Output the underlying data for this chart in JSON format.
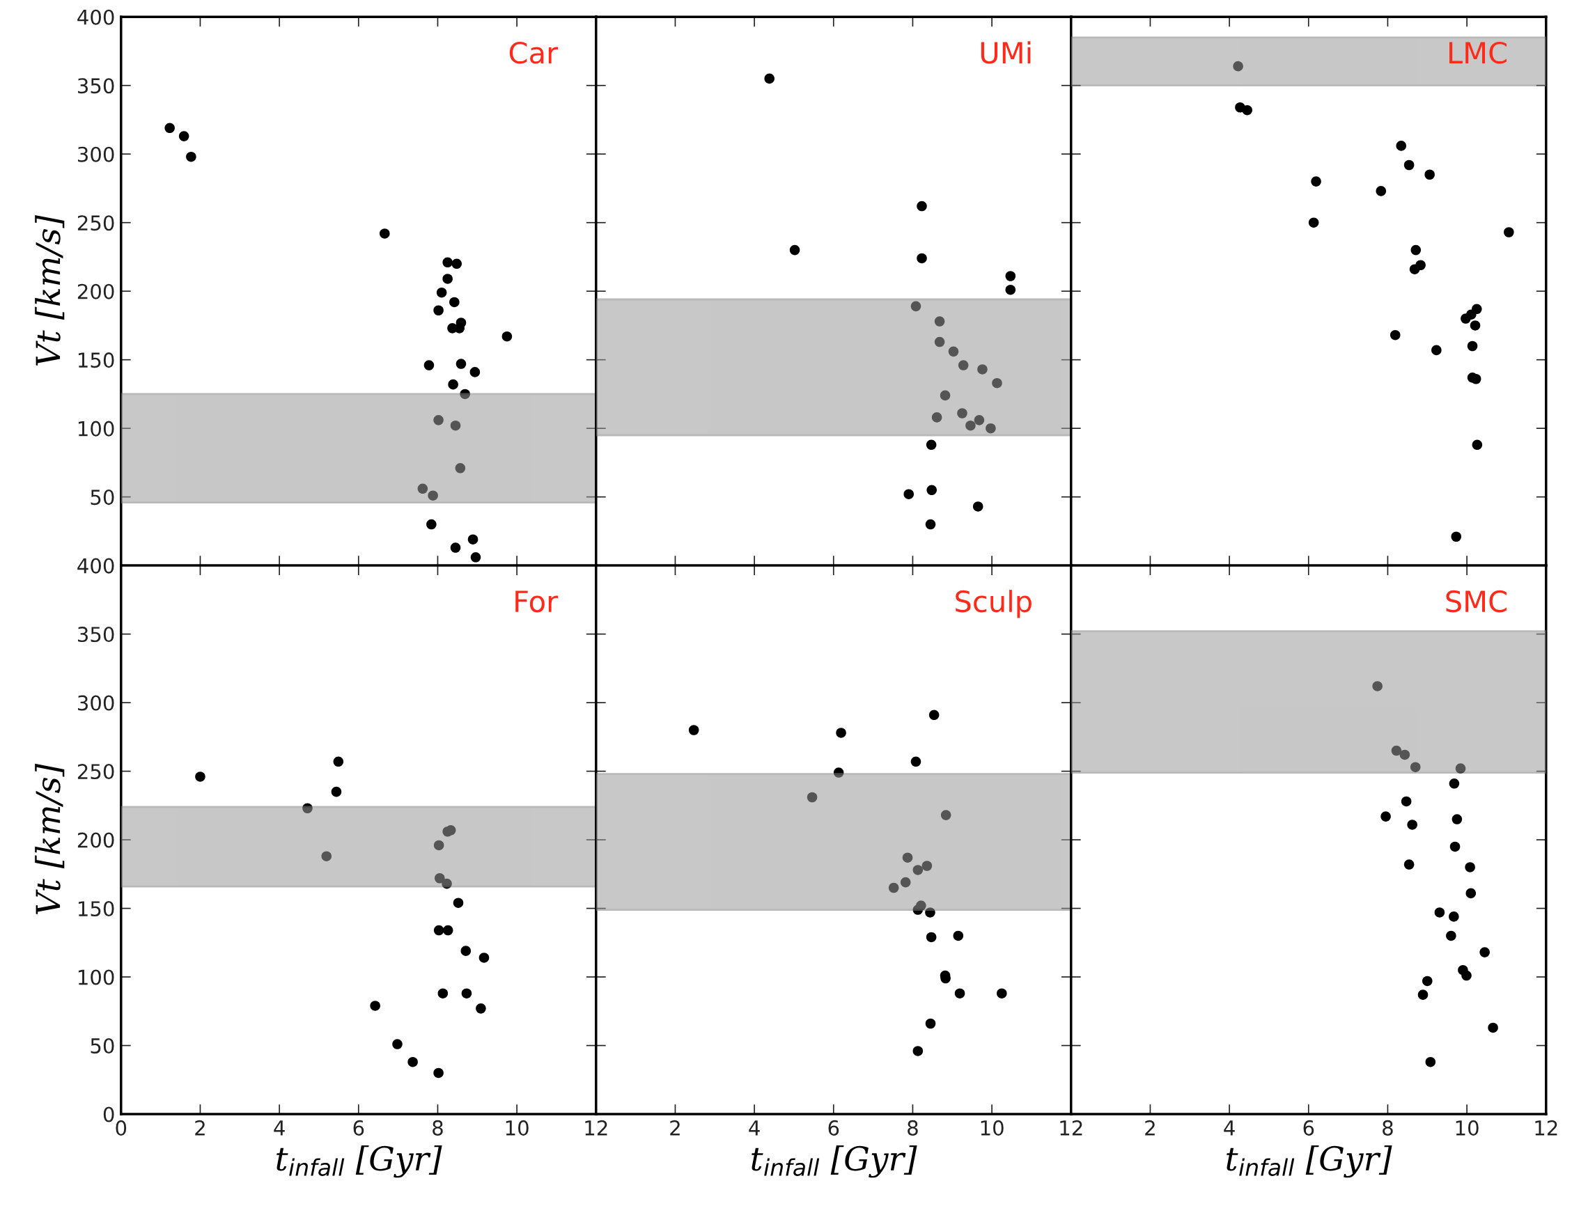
{
  "chart_data": [
    {
      "type": "scatter",
      "title": "Car",
      "ylabel": "Vt [km/s]",
      "xlim": [
        0,
        12
      ],
      "ylim": [
        0,
        400
      ],
      "xticks": [
        0,
        2,
        4,
        6,
        8,
        10,
        12
      ],
      "yticks": [
        {
          "value": 0,
          "label": null
        },
        50,
        100,
        150,
        200,
        250,
        300,
        350,
        400
      ],
      "tick_labels": "y",
      "marker": "circle",
      "grid": false,
      "bands": [
        {
          "axis": "y",
          "from": 46,
          "to": 125,
          "color": "#9b9b9b"
        }
      ],
      "series": [
        {
          "color": "#000000",
          "x": [
            1.23,
            1.59,
            1.77,
            6.66,
            8.25,
            8.48,
            8.25,
            8.1,
            8.42,
            8.02,
            8.37,
            8.59,
            8.55,
            9.75,
            7.78,
            8.59,
            8.94,
            8.39,
            8.69,
            8.02,
            8.45,
            8.57,
            7.62,
            7.88,
            7.84,
            8.89,
            8.45,
            8.96
          ],
          "values": [
            319,
            313,
            298,
            242,
            221,
            220,
            209,
            199,
            192,
            186,
            173,
            177,
            173,
            167,
            146,
            147,
            141,
            132,
            125,
            106,
            102,
            71,
            56,
            51,
            30,
            19,
            13,
            6
          ]
        }
      ]
    },
    {
      "type": "scatter",
      "title": "UMi",
      "xlim": [
        0,
        12
      ],
      "ylim": [
        0,
        400
      ],
      "xticks": [
        0,
        2,
        4,
        6,
        8,
        10,
        12
      ],
      "yticks": [
        0,
        50,
        100,
        150,
        200,
        250,
        300,
        350,
        400
      ],
      "tick_labels": false,
      "marker": "circle",
      "grid": false,
      "bands": [
        {
          "axis": "y",
          "from": 95,
          "to": 194,
          "color": "#9b9b9b"
        }
      ],
      "series": [
        {
          "color": "#000000",
          "x": [
            4.38,
            5.02,
            8.23,
            8.23,
            10.47,
            10.47,
            8.08,
            8.68,
            8.68,
            9.03,
            9.28,
            9.76,
            10.13,
            8.82,
            8.61,
            9.25,
            9.46,
            9.68,
            9.97,
            8.47,
            7.9,
            8.48,
            9.65,
            8.45
          ],
          "values": [
            355,
            230,
            262,
            224,
            211,
            201,
            189,
            178,
            163,
            156,
            146,
            143,
            133,
            124,
            108,
            111,
            102,
            106,
            100,
            88,
            52,
            55,
            43,
            30
          ]
        }
      ]
    },
    {
      "type": "scatter",
      "title": "LMC",
      "xlim": [
        0,
        12
      ],
      "ylim": [
        0,
        400
      ],
      "xticks": [
        0,
        2,
        4,
        6,
        8,
        10,
        12
      ],
      "yticks": [
        0,
        50,
        100,
        150,
        200,
        250,
        300,
        350,
        400
      ],
      "tick_labels": false,
      "marker": "circle",
      "grid": false,
      "bands": [
        {
          "axis": "y",
          "from": 350,
          "to": 385,
          "color": "#9b9b9b"
        }
      ],
      "series": [
        {
          "color": "#000000",
          "x": [
            4.22,
            4.27,
            4.45,
            8.34,
            8.54,
            9.06,
            6.19,
            7.83,
            6.13,
            11.06,
            8.71,
            8.83,
            8.68,
            10.25,
            10.11,
            9.97,
            10.21,
            8.19,
            9.23,
            10.14,
            10.14,
            10.23,
            10.26,
            9.73
          ],
          "values": [
            364,
            334,
            332,
            306,
            292,
            285,
            280,
            273,
            250,
            243,
            230,
            219,
            216,
            187,
            183,
            180,
            175,
            168,
            157,
            160,
            137,
            136,
            88,
            21
          ]
        }
      ]
    },
    {
      "type": "scatter",
      "title": "For",
      "ylabel": "Vt [km/s]",
      "xlabel": "t$_{infall}$ [Gyr]",
      "xlim": [
        0,
        12
      ],
      "ylim": [
        0,
        400
      ],
      "xticks": [
        0,
        2,
        4,
        6,
        8,
        10,
        12
      ],
      "yticks": [
        0,
        50,
        100,
        150,
        200,
        250,
        300,
        350,
        400
      ],
      "marker": "circle",
      "grid": false,
      "bands": [
        {
          "axis": "y",
          "from": 166,
          "to": 224,
          "color": "#9b9b9b"
        }
      ],
      "series": [
        {
          "color": "#000000",
          "x": [
            2.0,
            5.49,
            5.44,
            4.71,
            5.19,
            8.25,
            8.33,
            8.03,
            8.05,
            8.23,
            8.52,
            8.03,
            8.26,
            8.71,
            9.17,
            8.13,
            8.73,
            9.09,
            6.42,
            6.98,
            7.37,
            8.02
          ],
          "values": [
            246,
            257,
            235,
            223,
            188,
            206,
            207,
            196,
            172,
            168,
            154,
            134,
            134,
            119,
            114,
            88,
            88,
            77,
            79,
            51,
            38,
            30
          ]
        }
      ]
    },
    {
      "type": "scatter",
      "title": "Sculp",
      "xlabel": "t$_{infall}$ [Gyr]",
      "xlim": [
        0,
        12
      ],
      "ylim": [
        0,
        400
      ],
      "xticks": [
        {
          "value": 0,
          "label": null
        },
        2,
        4,
        6,
        8,
        10,
        12
      ],
      "yticks": [
        0,
        50,
        100,
        150,
        200,
        250,
        300,
        350,
        400
      ],
      "tick_labels": "x",
      "marker": "circle",
      "grid": false,
      "bands": [
        {
          "axis": "y",
          "from": 149,
          "to": 248,
          "color": "#9b9b9b"
        }
      ],
      "series": [
        {
          "color": "#000000",
          "x": [
            2.47,
            6.19,
            8.54,
            8.08,
            6.13,
            5.46,
            8.84,
            7.87,
            8.13,
            8.36,
            7.82,
            7.52,
            8.21,
            8.13,
            8.44,
            8.47,
            9.15,
            8.82,
            8.83,
            9.19,
            10.25,
            8.45,
            8.13
          ],
          "values": [
            280,
            278,
            291,
            257,
            249,
            231,
            218,
            187,
            178,
            181,
            169,
            165,
            152,
            149,
            147,
            129,
            130,
            101,
            99,
            88,
            88,
            66,
            46
          ]
        }
      ]
    },
    {
      "type": "scatter",
      "title": "SMC",
      "xlabel": "t$_{infall}$ [Gyr]",
      "xlim": [
        0,
        12
      ],
      "ylim": [
        0,
        400
      ],
      "xticks": [
        {
          "value": 0,
          "label": null
        },
        2,
        4,
        6,
        8,
        10,
        12
      ],
      "yticks": [
        0,
        50,
        100,
        150,
        200,
        250,
        300,
        350,
        400
      ],
      "tick_labels": "x",
      "marker": "circle",
      "grid": false,
      "bands": [
        {
          "axis": "y",
          "from": 249,
          "to": 352,
          "color": "#9b9b9b"
        }
      ],
      "series": [
        {
          "color": "#000000",
          "x": [
            7.74,
            8.22,
            8.43,
            8.7,
            9.84,
            9.68,
            8.47,
            7.95,
            9.75,
            8.62,
            9.7,
            8.54,
            10.08,
            10.1,
            9.31,
            9.67,
            9.6,
            10.45,
            9.9,
            9.99,
            9.0,
            8.89,
            10.66,
            9.08
          ],
          "values": [
            312,
            265,
            262,
            253,
            252,
            241,
            228,
            217,
            215,
            211,
            195,
            182,
            180,
            161,
            147,
            144,
            130,
            118,
            105,
            101,
            97,
            87,
            63,
            38
          ]
        }
      ]
    }
  ]
}
